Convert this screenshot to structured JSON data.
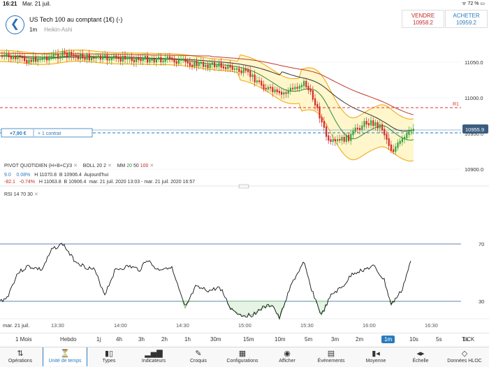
{
  "status": {
    "time": "16:21",
    "date": "Mar. 21 juil.",
    "right": "ᯤ 72 % ▭"
  },
  "instrument": {
    "name": "US Tech 100 au comptant (1€) (-)",
    "timeframe": "1m",
    "chart_style": "Heikin-Ashi"
  },
  "sell": {
    "label": "VENDRE",
    "price": "10958.2"
  },
  "buy": {
    "label": "ACHETER",
    "price": "10959.2"
  },
  "price_axis": {
    "labels": [
      "11050.0",
      "11000.0",
      "10950.0",
      "10900.0"
    ],
    "current_price": "10955.9",
    "r1_label": "R1"
  },
  "position": {
    "pnl": "+7,90 €",
    "size": "+ 1 contrat"
  },
  "indicators": {
    "pivot": "PIVOT QUOTIDIEN (H+B+C)/3",
    "boll_label": "BOLL",
    "boll_n": "20",
    "boll_k": "2",
    "mm_label": "MM",
    "mm_a": "20",
    "mm_b": "50",
    "mm_c": "100",
    "close_glyph": "✕"
  },
  "stats": {
    "row1": {
      "change": "9.0",
      "pct": "0.08%",
      "high": "H 11070.8",
      "low": "B 10906.4",
      "period": "Aujourd'hui"
    },
    "row2": {
      "change": "-82.1",
      "pct": "-0.74%",
      "high": "H 11063.8",
      "low": "B 10906.4",
      "period": "mar. 21 juil. 2020 13:03 - mar. 21 juil. 2020 16:57"
    }
  },
  "rsi": {
    "label": "RSI  14  70  30",
    "upper": "70",
    "lower": "30"
  },
  "time_axis": {
    "date": "mar. 21 juil.",
    "labels": [
      "13:30",
      "14:00",
      "14:30",
      "15:00",
      "15:30",
      "16:00",
      "16:30"
    ]
  },
  "timeframes": [
    "1 Mois",
    "Hebdo",
    "1j",
    "4h",
    "3h",
    "2h",
    "1h",
    "30m",
    "15m",
    "10m",
    "5m",
    "3m",
    "2m",
    "1m",
    "10s",
    "5s",
    "1s",
    "TICK"
  ],
  "active_timeframe": "1m",
  "toolbar": [
    {
      "label": "Opérations",
      "icon": "⇅"
    },
    {
      "label": "Unité de temps",
      "icon": "⏳"
    },
    {
      "label": "Types",
      "icon": "▮▯"
    },
    {
      "label": "Indicateurs",
      "icon": "▂▅▇"
    },
    {
      "label": "Croquis",
      "icon": "✎"
    },
    {
      "label": "Configurations",
      "icon": "▦"
    },
    {
      "label": "Afficher",
      "icon": "◉"
    },
    {
      "label": "Événements",
      "icon": "▤"
    },
    {
      "label": "Moyenne",
      "icon": "▮◂"
    },
    {
      "label": "Échelle",
      "icon": "◂▸"
    },
    {
      "label": "Données HLOC",
      "icon": "◇"
    }
  ],
  "colors": {
    "accent": "#2a7bbd",
    "up": "#3aa33a",
    "down": "#d42a2a",
    "band": "#f0a500",
    "ma100": "#c0392b"
  }
}
